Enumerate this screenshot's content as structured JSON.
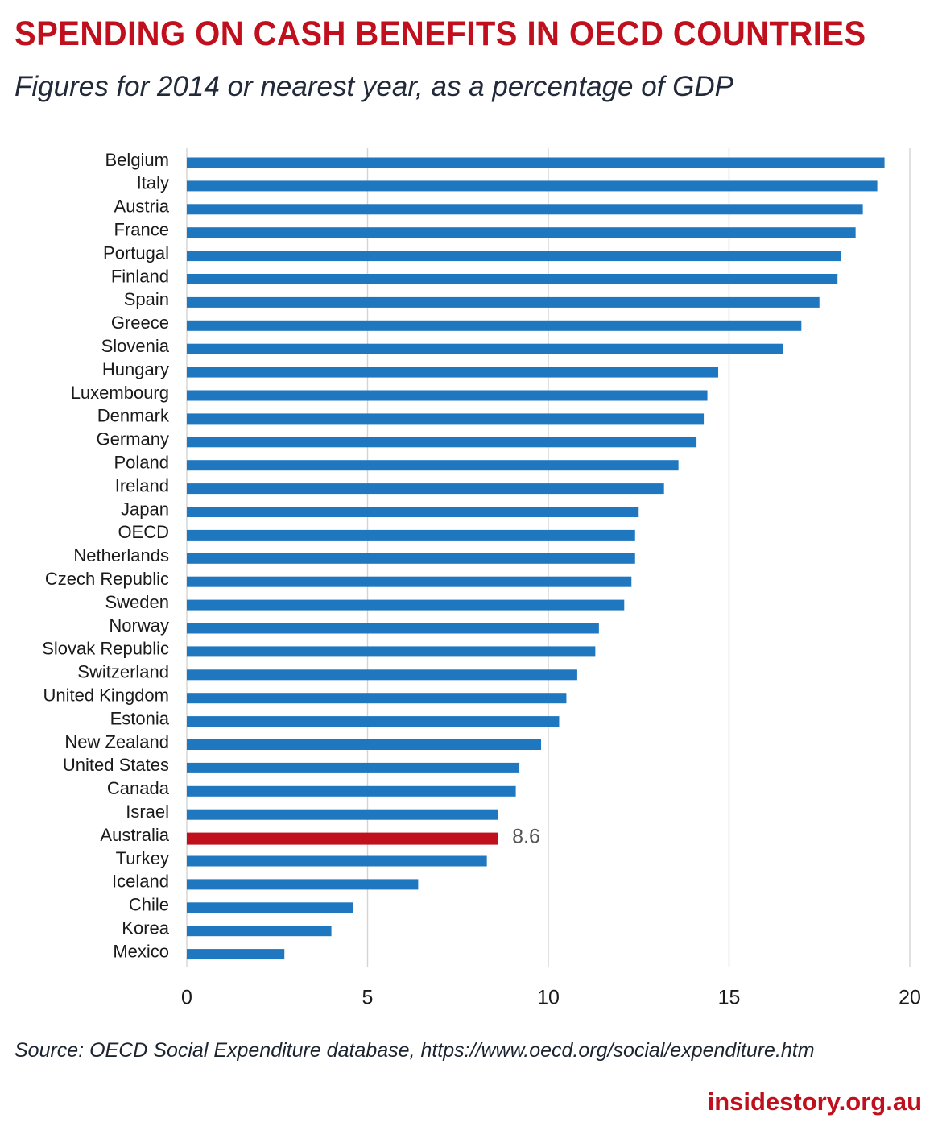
{
  "header": {
    "title": "SPENDING ON CASH BENEFITS IN OECD COUNTRIES",
    "subtitle": "Figures for 2014 or nearest year, as a percentage of GDP"
  },
  "footer": {
    "source": "Source: OECD Social Expenditure database, https://www.oecd.org/social/expenditure.htm",
    "brand": "insidestory.org.au"
  },
  "colors": {
    "bar": "#1f77c0",
    "highlight": "#c0101e",
    "grid": "#d4d4d4",
    "label": "#1a1a1a",
    "tick": "#1a1a1a",
    "data_label": "#555555"
  },
  "chart_data": {
    "type": "bar",
    "orientation": "horizontal",
    "categories": [
      "Belgium",
      "Italy",
      "Austria",
      "France",
      "Portugal",
      "Finland",
      "Spain",
      "Greece",
      "Slovenia",
      "Hungary",
      "Luxembourg",
      "Denmark",
      "Germany",
      "Poland",
      "Ireland",
      "Japan",
      "OECD",
      "Netherlands",
      "Czech Republic",
      "Sweden",
      "Norway",
      "Slovak Republic",
      "Switzerland",
      "United Kingdom",
      "Estonia",
      "New Zealand",
      "United States",
      "Canada",
      "Israel",
      "Australia",
      "Turkey",
      "Iceland",
      "Chile",
      "Korea",
      "Mexico"
    ],
    "values": [
      19.3,
      19.1,
      18.7,
      18.5,
      18.1,
      18.0,
      17.5,
      17.0,
      16.5,
      14.7,
      14.4,
      14.3,
      14.1,
      13.6,
      13.2,
      12.5,
      12.4,
      12.4,
      12.3,
      12.1,
      11.4,
      11.3,
      10.8,
      10.5,
      10.3,
      9.8,
      9.2,
      9.1,
      8.6,
      8.6,
      8.3,
      6.4,
      4.6,
      4.0,
      2.7
    ],
    "highlight": "Australia",
    "data_labels": [
      {
        "category": "Australia",
        "label": "8.6"
      }
    ],
    "xlim": [
      0,
      20
    ],
    "xticks": [
      0,
      5,
      10,
      15,
      20
    ],
    "xtick_labels": [
      "0",
      "5",
      "10",
      "15",
      "20"
    ],
    "grid": true
  }
}
